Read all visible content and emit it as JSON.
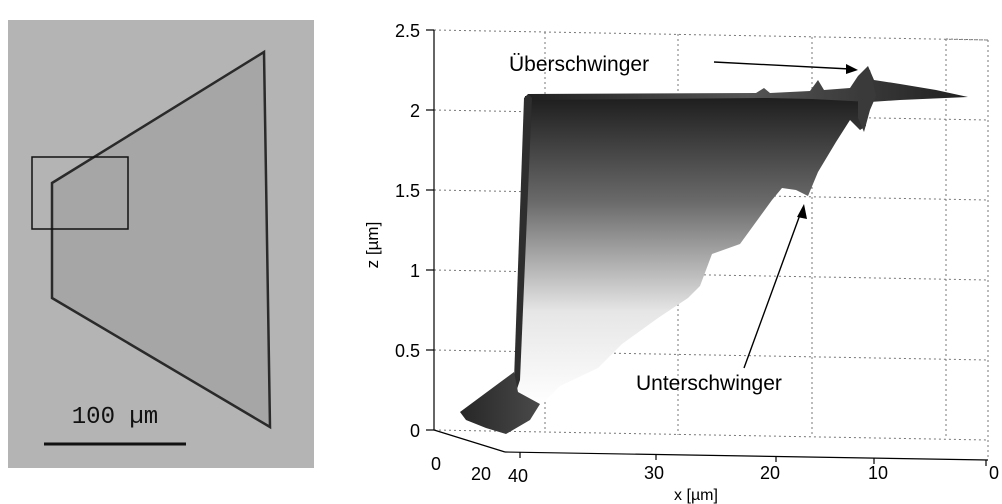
{
  "micrograph": {
    "scale_bar_label": "100 µm",
    "background_color": "#b4b4b4",
    "shape_color": "#a6a6a6",
    "edge_color": "#2a2a2a"
  },
  "surface_plot": {
    "ylabel": "z [µm]",
    "xlabel": "x [µm]",
    "z_ticks": [
      "0",
      "0.5",
      "1",
      "1.5",
      "2",
      "2.5"
    ],
    "x_ticks": [
      "40",
      "30",
      "20",
      "10",
      "0"
    ],
    "depth_ticks": [
      "0",
      "20"
    ],
    "annotation_overshoot": "Überschwinger",
    "annotation_undershoot": "Unterschwinger"
  },
  "chart_data": {
    "type": "surface",
    "xlabel": "x [µm]",
    "ylabel": "z [µm]",
    "zlim": [
      0,
      2.5
    ],
    "xlim": [
      40,
      0
    ],
    "grid": true,
    "plateau_height": 2.08,
    "step_position_x": 39,
    "overshoot": {
      "label": "Überschwinger",
      "x": 11,
      "z": 2.22
    },
    "undershoot": {
      "label": "Unterschwinger",
      "x": 16,
      "z": 1.45
    }
  }
}
